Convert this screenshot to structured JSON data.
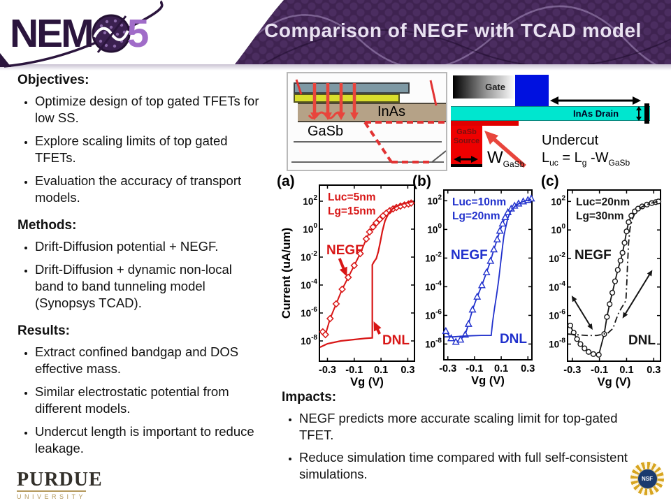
{
  "header": {
    "logo_nem": "NEM",
    "logo_5": "5",
    "title": "Comparison of NEGF with TCAD model"
  },
  "sections": {
    "objectives": {
      "heading": "Objectives:",
      "bullets": [
        "Optimize design of top gated TFETs for low SS.",
        "Explore scaling limits of top gated TFETs.",
        "Evaluation the accuracy of transport models."
      ]
    },
    "methods": {
      "heading": "Methods:",
      "bullets": [
        "Drift-Diffusion potential + NEGF.",
        "Drift-Diffusion + dynamic non-local band to band tunneling model (Synopsys TCAD)."
      ]
    },
    "results": {
      "heading": "Results:",
      "bullets": [
        "Extract confined bandgap and DOS effective mass.",
        "Similar electrostatic potential from different models.",
        "Undercut length is important to reduce leakage."
      ]
    },
    "impacts": {
      "heading": "Impacts:",
      "bullets": [
        "NEGF predicts more accurate scaling limit for top-gated TFET.",
        "Reduce simulation time compared with full self-consistent simulations."
      ]
    }
  },
  "device_left": {
    "inas_label": "InAs",
    "gasb_label": "GaSb"
  },
  "device_right": {
    "gate_label": "Gate",
    "inas_drain_label": "InAs Drain",
    "gasb_source_line1": "GaSb",
    "gasb_source_line2": "Source",
    "w_main": "W",
    "w_sub": "GaSb",
    "undercut_label": "Undercut",
    "formula": {
      "p1": "L",
      "s1": "uc",
      "p2": " = L",
      "s2": "g",
      "p3": " -W",
      "s3": "GaSb"
    }
  },
  "panels": [
    "(a)",
    "(b)",
    "(c)"
  ],
  "footer": {
    "purdue": "PURDUE",
    "university": "UNIVERSITY",
    "nsf": "NSF"
  },
  "colors": {
    "banner_purple": "#3f2351",
    "logo_light_purple": "#a06cc8",
    "chart_red": "#d81616",
    "chart_blue": "#2030cc",
    "chart_black": "#151515"
  },
  "chart_data": [
    {
      "type": "line",
      "panel": "(a)",
      "color": "#d81616",
      "xlabel": "Vg (V)",
      "ylabel": "Current (uA/um)",
      "annotation_lines": [
        "Luc=5nm",
        "Lg=15nm"
      ],
      "negf_label": "NEGF",
      "dnl_label": "DNL",
      "x_ticks": [
        -0.3,
        -0.1,
        0.1,
        0.3
      ],
      "y_tick_exponents": [
        2,
        0,
        -2,
        -4,
        -6,
        -8
      ],
      "xlim": [
        -0.36,
        0.35
      ],
      "ylog_lim": [
        -9.45,
        3.15
      ],
      "grid": false,
      "series": [
        {
          "name": "NEGF",
          "marker": "diamond",
          "line_style": "solid",
          "width": 2,
          "x": [
            -0.335,
            -0.315,
            -0.28,
            -0.235,
            -0.19,
            -0.145,
            -0.1,
            -0.055,
            -0.01,
            0.015,
            0.04,
            0.065,
            0.09,
            0.115,
            0.14,
            0.165,
            0.19,
            0.215,
            0.245,
            0.275,
            0.305,
            0.325
          ],
          "log10y": [
            -7.35,
            -7.55,
            -6.4,
            -5.35,
            -4.3,
            -3.45,
            -2.6,
            -1.75,
            -0.7,
            -0.2,
            0.15,
            0.45,
            0.7,
            0.95,
            1.15,
            1.32,
            1.45,
            1.55,
            1.65,
            1.73,
            1.8,
            1.87
          ]
        },
        {
          "name": "DNL",
          "marker": "none",
          "line_style": "solid",
          "width": 2.2,
          "x": [
            -0.355,
            -0.3,
            -0.2,
            -0.1,
            -0.02,
            0.035,
            0.035,
            0.05,
            0.065,
            0.08,
            0.095,
            0.11,
            0.13,
            0.155,
            0.185,
            0.22,
            0.26,
            0.3,
            0.34
          ],
          "log10y": [
            -8.45,
            -8.2,
            -8.0,
            -7.9,
            -7.82,
            -7.78,
            -2.55,
            -2.3,
            -2.1,
            -1.6,
            -0.9,
            -0.15,
            0.6,
            1.1,
            1.45,
            1.65,
            1.8,
            1.9,
            1.98
          ]
        }
      ],
      "arrows": [
        {
          "x1": -0.21,
          "ly1": -2.1,
          "x2": -0.155,
          "ly2": -3.4,
          "double": false,
          "w": 4
        },
        {
          "x1": 0.09,
          "ly1": -7.5,
          "x2": 0.045,
          "ly2": -6.6,
          "double": false,
          "w": 4
        }
      ]
    },
    {
      "type": "line",
      "panel": "(b)",
      "color": "#2030cc",
      "xlabel": "Vg (V)",
      "annotation_lines": [
        "Luc=10nm",
        "Lg=20nm"
      ],
      "negf_label": "NEGF",
      "dnl_label": "DNL",
      "x_ticks": [
        -0.3,
        -0.1,
        0.1,
        0.3
      ],
      "y_tick_exponents": [
        2,
        0,
        -2,
        -4,
        -6,
        -8
      ],
      "xlim": [
        -0.33,
        0.33
      ],
      "ylog_lim": [
        -9.1,
        2.75
      ],
      "grid": false,
      "series": [
        {
          "name": "NEGF",
          "marker": "triangle",
          "line_style": "solid",
          "width": 1.8,
          "x": [
            -0.315,
            -0.275,
            -0.24,
            -0.205,
            -0.17,
            -0.145,
            -0.115,
            -0.08,
            -0.045,
            -0.01,
            0.02,
            0.045,
            0.07,
            0.09,
            0.11,
            0.13,
            0.15,
            0.175,
            0.2,
            0.23,
            0.265,
            0.3,
            0.325
          ],
          "log10y": [
            -7.1,
            -7.6,
            -7.85,
            -7.7,
            -7.35,
            -6.6,
            -5.6,
            -4.7,
            -3.9,
            -3.0,
            -2.2,
            -1.4,
            -0.7,
            -0.1,
            0.4,
            0.85,
            1.2,
            1.45,
            1.65,
            1.8,
            1.95,
            2.05,
            2.15
          ]
        },
        {
          "name": "DNL",
          "marker": "none",
          "line_style": "solid",
          "width": 1.8,
          "x": [
            -0.325,
            -0.26,
            -0.19,
            -0.12,
            -0.05,
            0.0,
            0.025,
            0.035,
            0.05,
            0.065,
            0.08,
            0.09,
            0.1,
            0.11,
            0.12,
            0.135,
            0.15,
            0.17,
            0.2,
            0.24,
            0.28,
            0.325
          ],
          "log10y": [
            -7.5,
            -7.5,
            -7.45,
            -7.42,
            -7.4,
            -7.4,
            -7.4,
            -6.5,
            -5.5,
            -4.6,
            -3.6,
            -2.8,
            -2.0,
            -1.2,
            -0.45,
            0.2,
            0.8,
            1.25,
            1.6,
            1.85,
            2.0,
            2.1
          ]
        }
      ],
      "arrows": []
    },
    {
      "type": "line",
      "panel": "(c)",
      "color": "#151515",
      "xlabel": "Vg (V)",
      "annotation_lines": [
        "Luc=20nm",
        "Lg=30nm"
      ],
      "negf_label": "NEGF",
      "dnl_label": "DNL",
      "x_ticks": [
        -0.3,
        -0.1,
        0.1,
        0.3
      ],
      "y_tick_exponents": [
        2,
        0,
        -2,
        -4,
        -6,
        -8
      ],
      "xlim": [
        -0.335,
        0.35
      ],
      "ylog_lim": [
        -9.2,
        2.8
      ],
      "grid": false,
      "series": [
        {
          "name": "NEGF",
          "marker": "circle",
          "line_style": "solid",
          "width": 1.8,
          "x": [
            -0.315,
            -0.29,
            -0.265,
            -0.24,
            -0.21,
            -0.18,
            -0.145,
            -0.105,
            -0.065,
            -0.045,
            -0.025,
            -0.005,
            0.015,
            0.035,
            0.055,
            0.07,
            0.085,
            0.1,
            0.115,
            0.135,
            0.16,
            0.185,
            0.215,
            0.25,
            0.285,
            0.315,
            0.335
          ],
          "log10y": [
            -6.7,
            -7.2,
            -7.65,
            -8.0,
            -8.3,
            -8.55,
            -8.7,
            -8.75,
            -7.3,
            -6.1,
            -5.2,
            -4.4,
            -3.6,
            -2.8,
            -2.15,
            -1.6,
            -0.9,
            -0.1,
            0.55,
            1.0,
            1.3,
            1.5,
            1.65,
            1.78,
            1.88,
            1.95,
            2.0
          ]
        },
        {
          "name": "DNL",
          "marker": "none",
          "line_style": "dashdot",
          "width": 1.8,
          "x": [
            -0.33,
            -0.26,
            -0.19,
            -0.12,
            -0.07,
            -0.04,
            0.0,
            0.02,
            0.04,
            0.06,
            0.08,
            0.095,
            0.102,
            0.108,
            0.115,
            0.125,
            0.14,
            0.16,
            0.19,
            0.23,
            0.27,
            0.31,
            0.34
          ],
          "log10y": [
            -7.3,
            -7.35,
            -7.4,
            -7.4,
            -7.3,
            -7.25,
            -6.9,
            -6.35,
            -5.85,
            -5.5,
            -5.2,
            -4.95,
            -3.6,
            -2.2,
            -0.9,
            0.1,
            0.7,
            1.15,
            1.5,
            1.7,
            1.85,
            1.95,
            2.0
          ]
        }
      ],
      "arrows": [
        {
          "x1": -0.305,
          "ly1": -4.6,
          "x2": -0.15,
          "ly2": -7.0,
          "double": true,
          "w": 2
        },
        {
          "x1": 0.07,
          "ly1": -6.2,
          "x2": 0.29,
          "ly2": -2.8,
          "double": true,
          "w": 2
        }
      ]
    }
  ]
}
